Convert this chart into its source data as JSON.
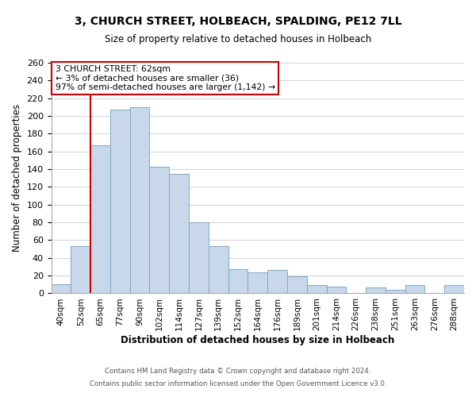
{
  "title": "3, CHURCH STREET, HOLBEACH, SPALDING, PE12 7LL",
  "subtitle": "Size of property relative to detached houses in Holbeach",
  "xlabel": "Distribution of detached houses by size in Holbeach",
  "ylabel": "Number of detached properties",
  "bar_labels": [
    "40sqm",
    "52sqm",
    "65sqm",
    "77sqm",
    "90sqm",
    "102sqm",
    "114sqm",
    "127sqm",
    "139sqm",
    "152sqm",
    "164sqm",
    "176sqm",
    "189sqm",
    "201sqm",
    "214sqm",
    "226sqm",
    "238sqm",
    "251sqm",
    "263sqm",
    "276sqm",
    "288sqm"
  ],
  "bar_values": [
    10,
    53,
    167,
    207,
    210,
    143,
    135,
    80,
    53,
    27,
    24,
    26,
    19,
    9,
    8,
    0,
    7,
    4,
    9,
    0,
    9
  ],
  "bar_color": "#c8d8ea",
  "bar_edge_color": "#7aaac8",
  "highlight_bar_index": 2,
  "highlight_color": "#cc0000",
  "ylim": [
    0,
    260
  ],
  "yticks": [
    0,
    20,
    40,
    60,
    80,
    100,
    120,
    140,
    160,
    180,
    200,
    220,
    240,
    260
  ],
  "annotation_title": "3 CHURCH STREET: 62sqm",
  "annotation_line1": "← 3% of detached houses are smaller (36)",
  "annotation_line2": "97% of semi-detached houses are larger (1,142) →",
  "footer1": "Contains HM Land Registry data © Crown copyright and database right 2024.",
  "footer2": "Contains public sector information licensed under the Open Government Licence v3.0.",
  "background_color": "#ffffff",
  "grid_color": "#cccccc"
}
